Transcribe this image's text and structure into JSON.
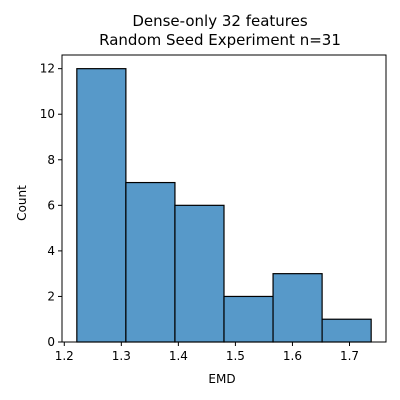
{
  "chart_data": {
    "type": "bar",
    "title": "Dense-only 32 features",
    "subtitle": "Random Seed Experiment n=31",
    "xlabel": "EMD",
    "ylabel": "Count",
    "bins": [
      {
        "left": 1.222,
        "right": 1.308,
        "count": 12
      },
      {
        "left": 1.308,
        "right": 1.394,
        "count": 7
      },
      {
        "left": 1.394,
        "right": 1.48,
        "count": 6
      },
      {
        "left": 1.48,
        "right": 1.566,
        "count": 2
      },
      {
        "left": 1.566,
        "right": 1.652,
        "count": 3
      },
      {
        "left": 1.652,
        "right": 1.738,
        "count": 1
      }
    ],
    "xlim": [
      1.196,
      1.764
    ],
    "ylim": [
      0,
      12.6
    ],
    "xticks": [
      1.2,
      1.3,
      1.4,
      1.5,
      1.6,
      1.7
    ],
    "xtick_labels": [
      "1.2",
      "1.3",
      "1.4",
      "1.5",
      "1.6",
      "1.7"
    ],
    "yticks": [
      0,
      2,
      4,
      6,
      8,
      10,
      12
    ],
    "ytick_labels": [
      "0",
      "2",
      "4",
      "6",
      "8",
      "10",
      "12"
    ],
    "bar_color": "#5799c9",
    "edge_color": "#000000",
    "grid": false
  }
}
